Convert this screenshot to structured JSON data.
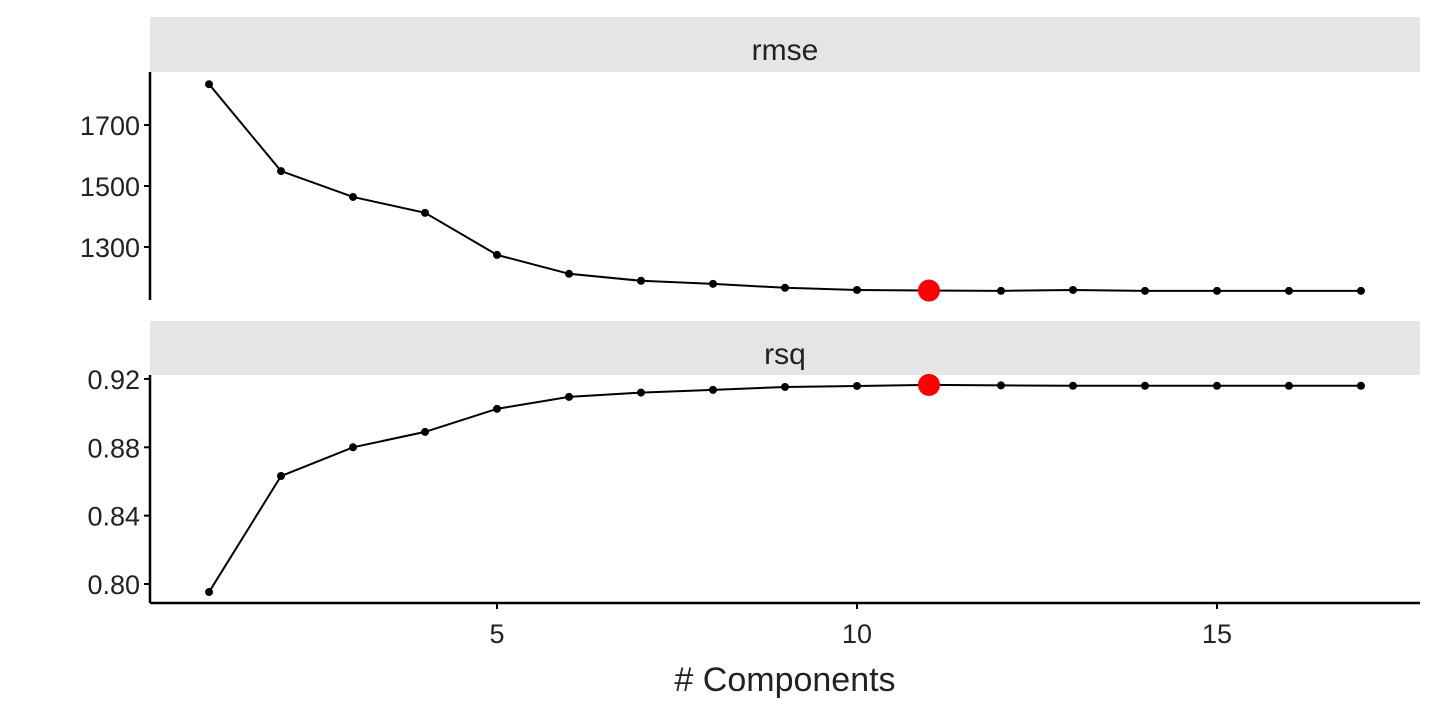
{
  "chart_data": {
    "type": "line",
    "xlabel": "# Components",
    "x": [
      1,
      2,
      3,
      4,
      5,
      6,
      7,
      8,
      9,
      10,
      11,
      12,
      13,
      14,
      15,
      16,
      17
    ],
    "xlim": [
      0.18,
      17.82
    ],
    "xticks": [
      5,
      10,
      15
    ],
    "highlight_color": "#ff0000",
    "highlight_x": 11,
    "panels": [
      {
        "strip": "rmse",
        "ylim": [
          1126,
          1874
        ],
        "yticks": [
          1300,
          1500,
          1700
        ],
        "ytick_labels": [
          "1300",
          "1500",
          "1700"
        ],
        "values": [
          1834,
          1549,
          1464,
          1412,
          1274,
          1212,
          1189,
          1179,
          1166,
          1159,
          1157,
          1156,
          1159,
          1156,
          1156,
          1156,
          1156
        ]
      },
      {
        "strip": "rsq",
        "ylim": [
          0.7889,
          0.9223
        ],
        "yticks": [
          0.8,
          0.84,
          0.88,
          0.92
        ],
        "ytick_labels": [
          "0.80",
          "0.84",
          "0.88",
          "0.92"
        ],
        "values": [
          0.7953,
          0.8632,
          0.88,
          0.889,
          0.9025,
          0.9095,
          0.912,
          0.9136,
          0.9153,
          0.9159,
          0.9165,
          0.9162,
          0.916,
          0.916,
          0.916,
          0.916,
          0.916
        ]
      }
    ]
  }
}
